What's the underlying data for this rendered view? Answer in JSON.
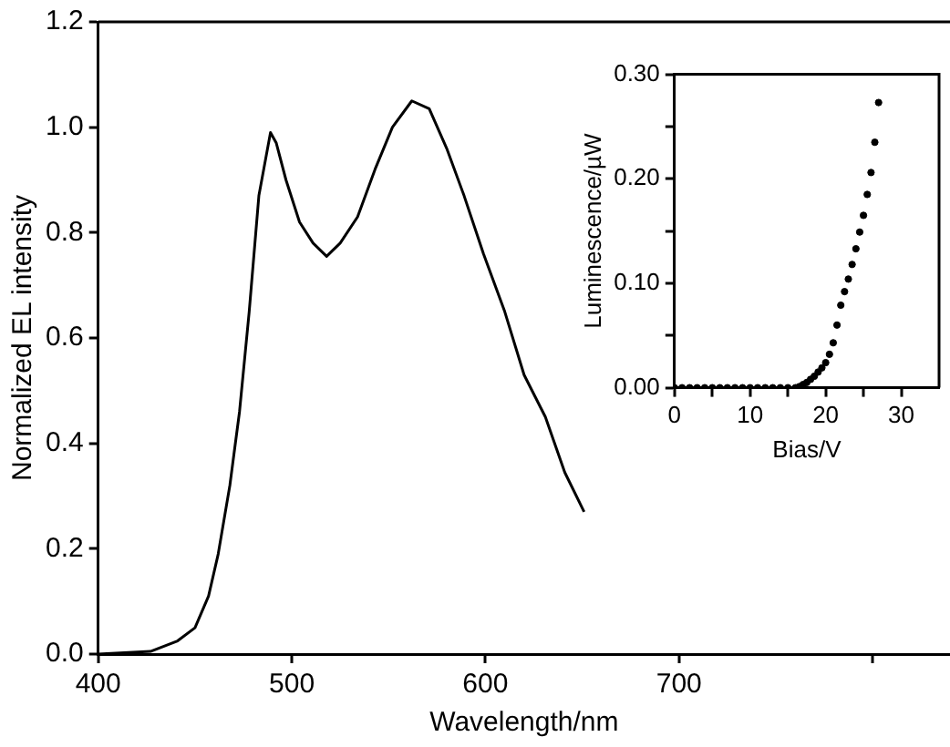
{
  "chart_data": [
    {
      "type": "line",
      "xlabel": "Wavelength/nm",
      "ylabel": "Normalized EL intensity",
      "marker": "none",
      "line_style": "solid",
      "grid": false,
      "legend": false,
      "xlim": [
        400,
        840
      ],
      "xticks": [
        400,
        500,
        600,
        700,
        {
          "value": 800,
          "label": null
        }
      ],
      "ylim": [
        0,
        1.2
      ],
      "yticks": [
        {
          "value": 0,
          "label": "0.0"
        },
        {
          "value": 0.2,
          "label": "0.2"
        },
        {
          "value": 0.4,
          "label": "0.4"
        },
        {
          "value": 0.6,
          "label": "0.6"
        },
        {
          "value": 0.8,
          "label": "0.8"
        },
        {
          "value": 1,
          "label": "1.0"
        },
        {
          "value": 1.2,
          "label": "1.2"
        }
      ],
      "series": [
        {
          "color": "#000000",
          "x": [
            400,
            427,
            441,
            450,
            457,
            462,
            468,
            473,
            478,
            483,
            489,
            492,
            497,
            504,
            511,
            518,
            525,
            534,
            543,
            552,
            562,
            571,
            580,
            589,
            599,
            610,
            620,
            631,
            641,
            651
          ],
          "values": [
            0,
            0.005,
            0.025,
            0.05,
            0.11,
            0.19,
            0.32,
            0.46,
            0.65,
            0.87,
            0.99,
            0.97,
            0.9,
            0.82,
            0.78,
            0.755,
            0.78,
            0.83,
            0.92,
            1,
            1.05,
            1.035,
            0.96,
            0.87,
            0.76,
            0.65,
            0.53,
            0.45,
            0.345,
            0.27
          ]
        }
      ]
    },
    {
      "type": "scatter",
      "xlabel": "Bias/V",
      "ylabel": "Luminescence/µW",
      "marker": "circle",
      "grid": false,
      "legend": false,
      "xlim": [
        0,
        35
      ],
      "xticks": [
        0,
        {
          "value": 5,
          "label": null
        },
        10,
        {
          "value": 15,
          "label": null
        },
        20,
        {
          "value": 25,
          "label": null
        },
        30
      ],
      "ylim": [
        0,
        0.3
      ],
      "yticks": [
        {
          "value": 0,
          "label": "0.00"
        },
        {
          "value": 0.05,
          "label": null
        },
        {
          "value": 0.1,
          "label": "0.10"
        },
        {
          "value": 0.15,
          "label": null
        },
        {
          "value": 0.2,
          "label": "0.20"
        },
        {
          "value": 0.25,
          "label": null
        },
        {
          "value": 0.3,
          "label": "0.30"
        }
      ],
      "series": [
        {
          "color": "#000000",
          "x": [
            0,
            1,
            2,
            3,
            4,
            5,
            6,
            7,
            8,
            9,
            10,
            11,
            12,
            13,
            14,
            15,
            16,
            16.5,
            17,
            17.5,
            18,
            18.5,
            19,
            19.5,
            20,
            20.5,
            21,
            21.5,
            22,
            22.5,
            23,
            23.5,
            24,
            24.5,
            25,
            25.5,
            26,
            26.5,
            27
          ],
          "values": [
            0,
            0,
            0,
            0,
            0,
            0,
            0,
            0,
            0,
            0,
            0,
            0,
            0,
            0,
            0,
            0,
            0,
            0.001,
            0.003,
            0.005,
            0.008,
            0.011,
            0.015,
            0.019,
            0.024,
            0.032,
            0.043,
            0.06,
            0.079,
            0.092,
            0.104,
            0.118,
            0.133,
            0.149,
            0.165,
            0.185,
            0.206,
            0.235,
            0.273
          ]
        }
      ]
    }
  ]
}
